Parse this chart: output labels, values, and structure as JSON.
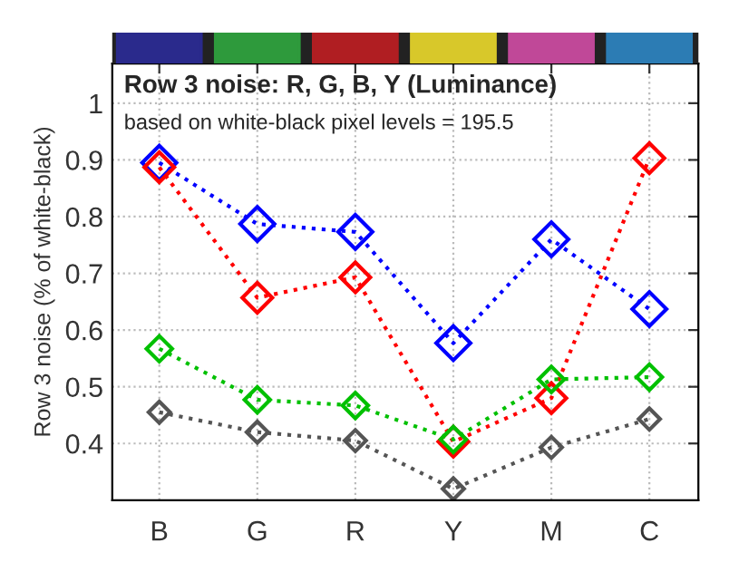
{
  "chart_data": {
    "type": "line",
    "title": "Row 3 noise: R, G, B, Y (Luminance)",
    "subtitle": "based on white-black pixel levels = 195.5",
    "ylabel": "Row 3 noise (% of white-black)",
    "categories": [
      "B",
      "G",
      "R",
      "Y",
      "M",
      "C"
    ],
    "series": [
      {
        "color": "#0000ff",
        "values": [
          0.895,
          0.787,
          0.773,
          0.577,
          0.76,
          0.637
        ]
      },
      {
        "color": "#ff0000",
        "values": [
          0.887,
          0.657,
          0.693,
          0.403,
          0.48,
          0.903
        ]
      },
      {
        "color": "#00c000",
        "values": [
          0.567,
          0.477,
          0.467,
          0.407,
          0.513,
          0.517
        ]
      },
      {
        "color": "#555555",
        "values": [
          0.455,
          0.42,
          0.405,
          0.32,
          0.393,
          0.443
        ]
      }
    ],
    "ylim": [
      0.3,
      1.07
    ],
    "yticks": [
      0.4,
      0.5,
      0.6,
      0.7,
      0.8,
      0.9,
      1
    ],
    "grid": true,
    "marker": "diamond",
    "line_style": "dotted"
  }
}
